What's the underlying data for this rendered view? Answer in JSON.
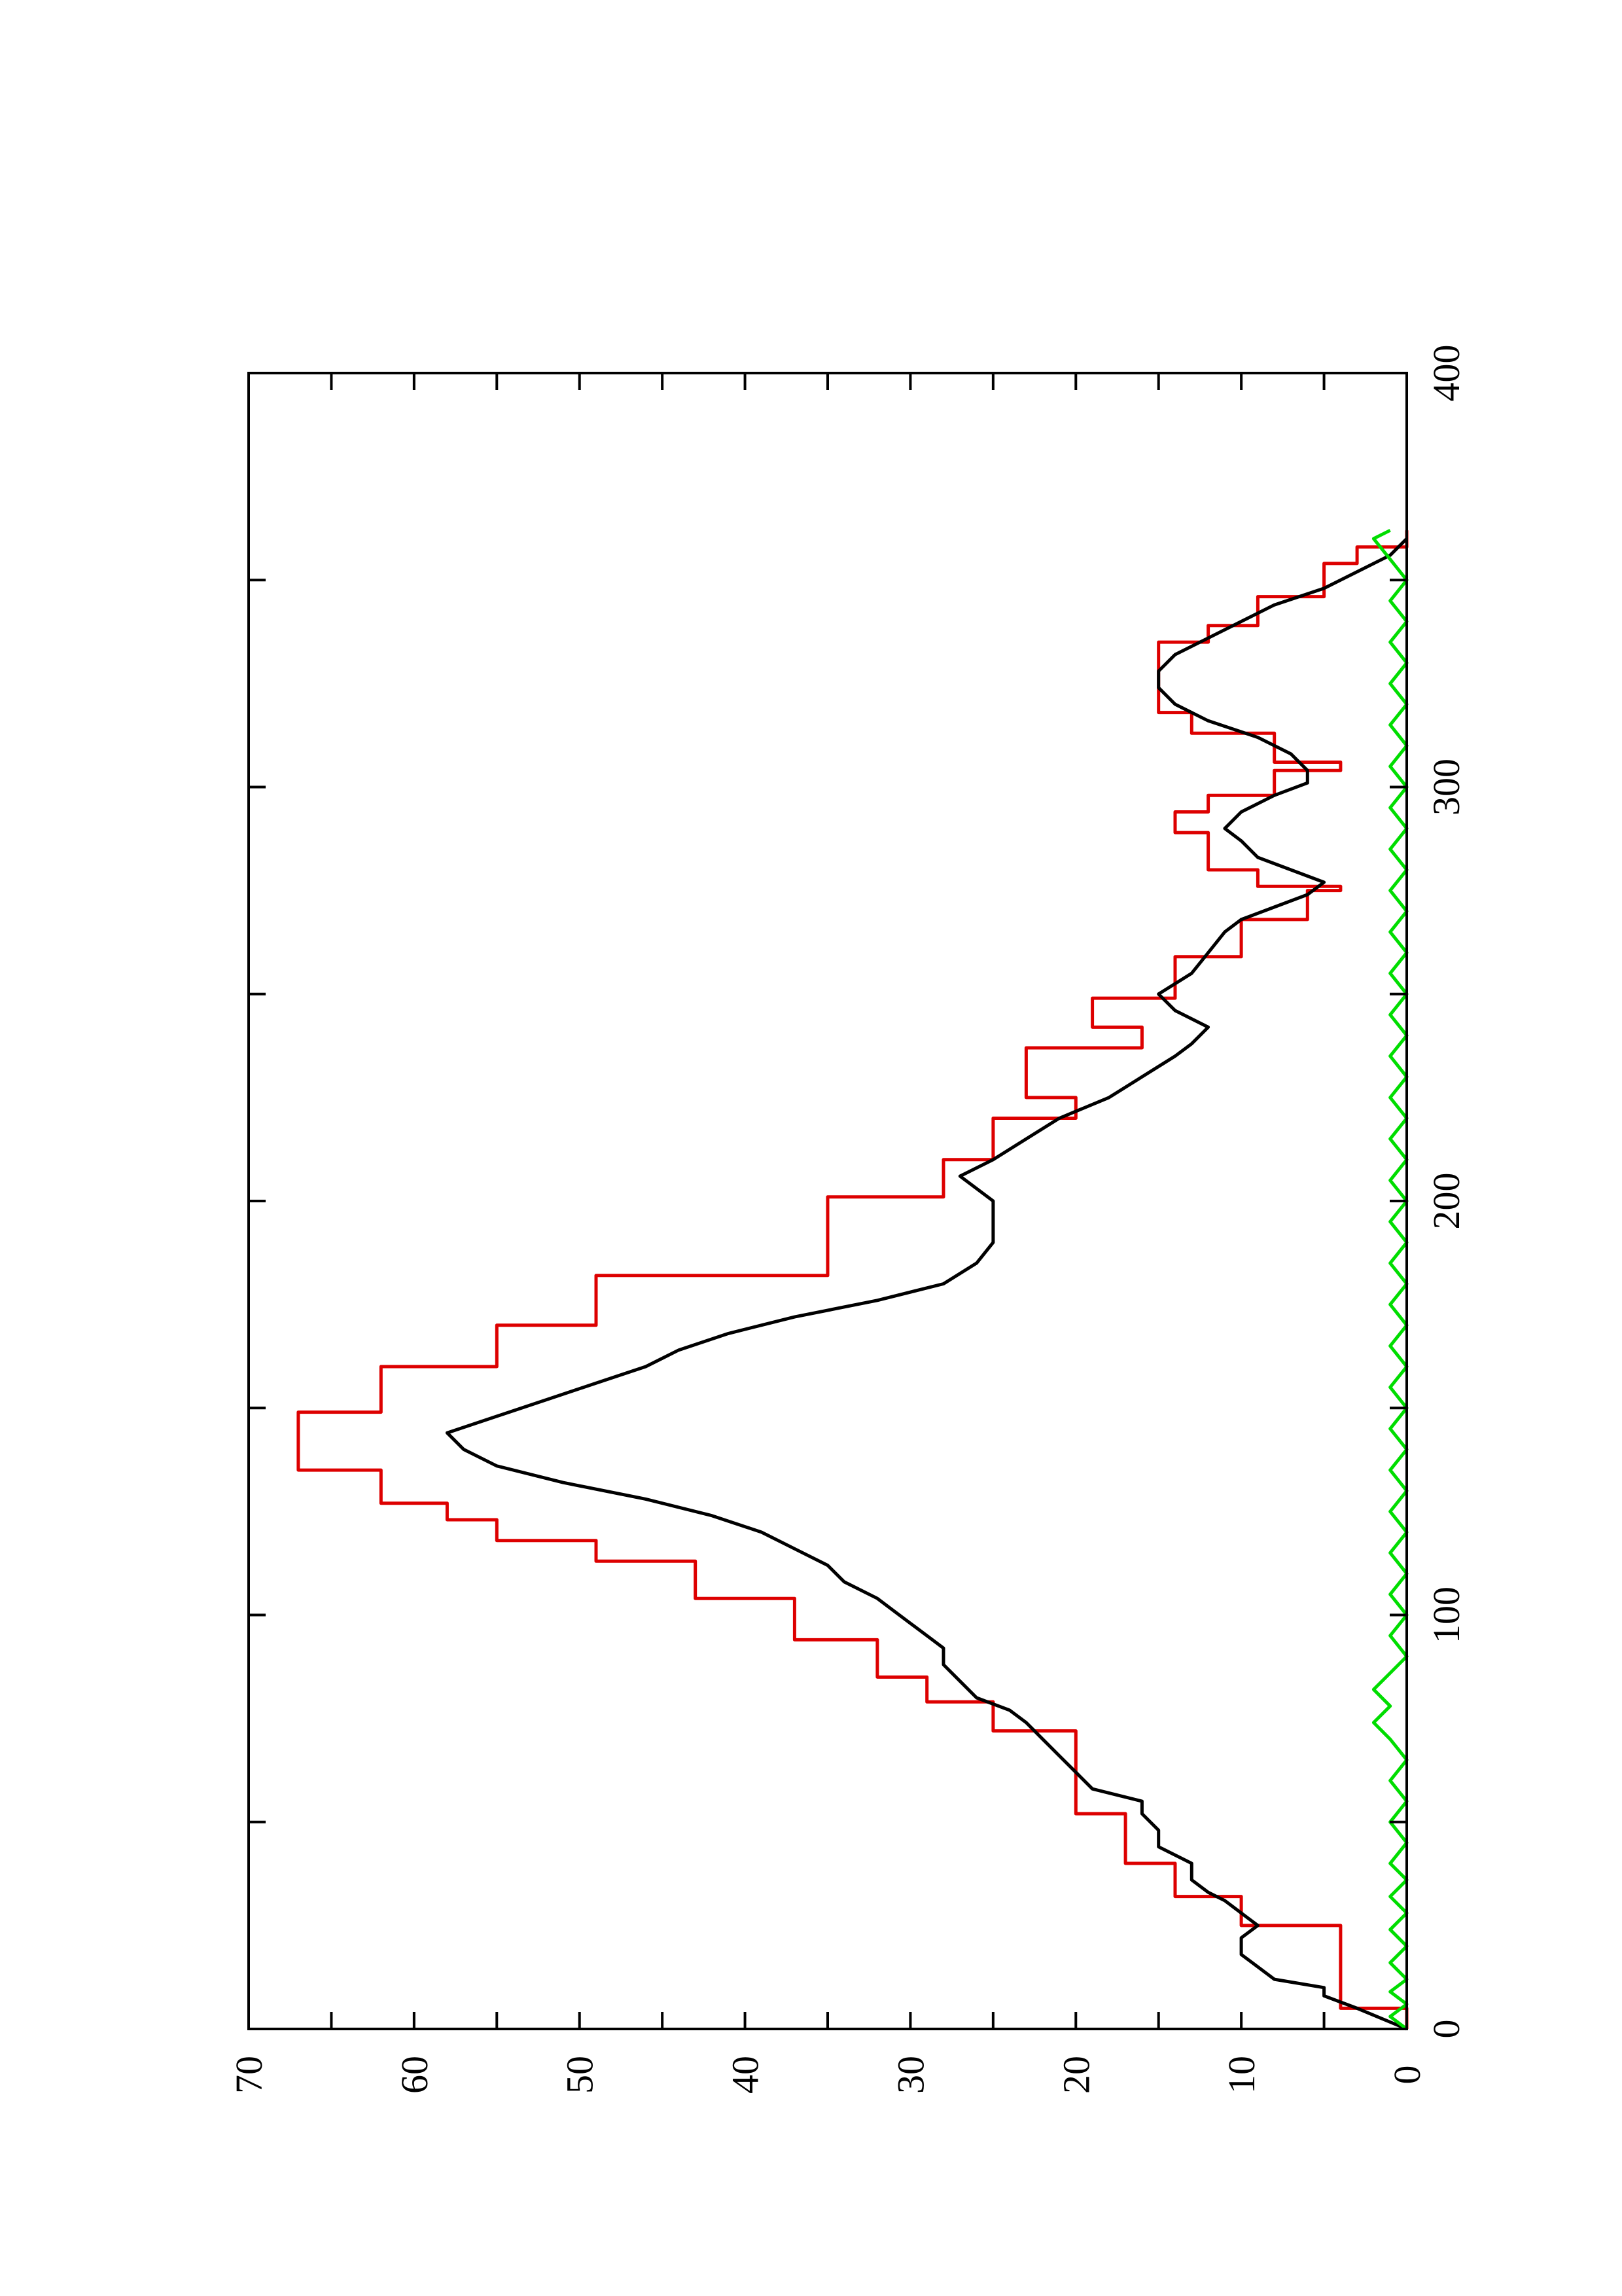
{
  "chart_data": {
    "type": "line",
    "orientation": "rotated-90-ccw",
    "title": "",
    "xlabel": "",
    "ylabel": "",
    "xlim": [
      0,
      400
    ],
    "ylim": [
      0,
      70
    ],
    "x_ticks": [
      0,
      100,
      200,
      300,
      400
    ],
    "y_ticks": [
      0,
      10,
      20,
      30,
      40,
      50,
      60,
      70
    ],
    "grid": false,
    "legend": "none",
    "series": [
      {
        "color": "#dd0000",
        "step": true,
        "points": [
          [
            0,
            0
          ],
          [
            5,
            0
          ],
          [
            5,
            4
          ],
          [
            25,
            4
          ],
          [
            25,
            10
          ],
          [
            32,
            10
          ],
          [
            32,
            14
          ],
          [
            40,
            14
          ],
          [
            40,
            17
          ],
          [
            52,
            17
          ],
          [
            52,
            20
          ],
          [
            72,
            20
          ],
          [
            72,
            25
          ],
          [
            79,
            25
          ],
          [
            79,
            29
          ],
          [
            85,
            29
          ],
          [
            85,
            32
          ],
          [
            94,
            32
          ],
          [
            94,
            37
          ],
          [
            104,
            37
          ],
          [
            104,
            43
          ],
          [
            113,
            43
          ],
          [
            113,
            49
          ],
          [
            118,
            49
          ],
          [
            118,
            55
          ],
          [
            123,
            55
          ],
          [
            123,
            58
          ],
          [
            127,
            58
          ],
          [
            127,
            62
          ],
          [
            135,
            62
          ],
          [
            135,
            67
          ],
          [
            149,
            67
          ],
          [
            149,
            62
          ],
          [
            160,
            62
          ],
          [
            160,
            55
          ],
          [
            170,
            55
          ],
          [
            170,
            49
          ],
          [
            182,
            49
          ],
          [
            182,
            35
          ],
          [
            201,
            35
          ],
          [
            201,
            28
          ],
          [
            210,
            28
          ],
          [
            210,
            25
          ],
          [
            220,
            25
          ],
          [
            220,
            20
          ],
          [
            225,
            20
          ],
          [
            225,
            23
          ],
          [
            237,
            23
          ],
          [
            237,
            16
          ],
          [
            242,
            16
          ],
          [
            242,
            19
          ],
          [
            249,
            19
          ],
          [
            249,
            14
          ],
          [
            259,
            14
          ],
          [
            259,
            10
          ],
          [
            268,
            10
          ],
          [
            268,
            6
          ],
          [
            275,
            6
          ],
          [
            275,
            4
          ],
          [
            276,
            4
          ],
          [
            276,
            9
          ],
          [
            280,
            9
          ],
          [
            280,
            12
          ],
          [
            289,
            12
          ],
          [
            289,
            14
          ],
          [
            294,
            14
          ],
          [
            294,
            12
          ],
          [
            298,
            12
          ],
          [
            298,
            8
          ],
          [
            304,
            8
          ],
          [
            304,
            4
          ],
          [
            306,
            4
          ],
          [
            306,
            8
          ],
          [
            313,
            8
          ],
          [
            313,
            13
          ],
          [
            318,
            13
          ],
          [
            318,
            15
          ],
          [
            335,
            15
          ],
          [
            335,
            12
          ],
          [
            339,
            12
          ],
          [
            339,
            9
          ],
          [
            346,
            9
          ],
          [
            346,
            5
          ],
          [
            354,
            5
          ],
          [
            354,
            3
          ],
          [
            358,
            3
          ],
          [
            358,
            0
          ],
          [
            362,
            0
          ]
        ]
      },
      {
        "color": "#000000",
        "step": false,
        "points": [
          [
            0,
            0
          ],
          [
            5,
            3
          ],
          [
            8,
            5
          ],
          [
            10,
            5
          ],
          [
            12,
            8
          ],
          [
            15,
            9
          ],
          [
            18,
            10
          ],
          [
            22,
            10
          ],
          [
            25,
            9
          ],
          [
            28,
            10
          ],
          [
            31,
            11
          ],
          [
            33,
            12
          ],
          [
            36,
            13
          ],
          [
            40,
            13
          ],
          [
            44,
            15
          ],
          [
            48,
            15
          ],
          [
            52,
            16
          ],
          [
            55,
            16
          ],
          [
            58,
            19
          ],
          [
            62,
            20
          ],
          [
            66,
            21
          ],
          [
            70,
            22
          ],
          [
            74,
            23
          ],
          [
            77,
            24
          ],
          [
            80,
            26
          ],
          [
            84,
            27
          ],
          [
            88,
            28
          ],
          [
            92,
            28
          ],
          [
            95,
            29
          ],
          [
            98,
            30
          ],
          [
            101,
            31
          ],
          [
            104,
            32
          ],
          [
            108,
            34
          ],
          [
            112,
            35
          ],
          [
            116,
            37
          ],
          [
            120,
            39
          ],
          [
            124,
            42
          ],
          [
            128,
            46
          ],
          [
            132,
            51
          ],
          [
            136,
            55
          ],
          [
            140,
            57
          ],
          [
            144,
            58
          ],
          [
            148,
            55
          ],
          [
            152,
            52
          ],
          [
            156,
            49
          ],
          [
            160,
            46
          ],
          [
            164,
            44
          ],
          [
            168,
            41
          ],
          [
            172,
            37
          ],
          [
            176,
            32
          ],
          [
            180,
            28
          ],
          [
            185,
            26
          ],
          [
            190,
            25
          ],
          [
            195,
            25
          ],
          [
            200,
            25
          ],
          [
            203,
            26
          ],
          [
            206,
            27
          ],
          [
            210,
            25
          ],
          [
            215,
            23
          ],
          [
            220,
            21
          ],
          [
            225,
            18
          ],
          [
            230,
            16
          ],
          [
            235,
            14
          ],
          [
            238,
            13
          ],
          [
            242,
            12
          ],
          [
            246,
            14
          ],
          [
            250,
            15
          ],
          [
            255,
            13
          ],
          [
            260,
            12
          ],
          [
            265,
            11
          ],
          [
            268,
            10
          ],
          [
            271,
            8
          ],
          [
            274,
            6
          ],
          [
            277,
            5
          ],
          [
            280,
            7
          ],
          [
            283,
            9
          ],
          [
            287,
            10
          ],
          [
            290,
            11
          ],
          [
            294,
            10
          ],
          [
            298,
            8
          ],
          [
            301,
            6
          ],
          [
            304,
            6
          ],
          [
            308,
            7
          ],
          [
            312,
            9
          ],
          [
            316,
            12
          ],
          [
            320,
            14
          ],
          [
            324,
            15
          ],
          [
            328,
            15
          ],
          [
            332,
            14
          ],
          [
            336,
            12
          ],
          [
            340,
            10
          ],
          [
            344,
            8
          ],
          [
            348,
            5
          ],
          [
            352,
            3
          ],
          [
            356,
            1
          ],
          [
            360,
            0
          ]
        ]
      },
      {
        "color": "#00dd00",
        "step": false,
        "points": [
          [
            0,
            0
          ],
          [
            3,
            1
          ],
          [
            6,
            0
          ],
          [
            9,
            1
          ],
          [
            12,
            0
          ],
          [
            16,
            1
          ],
          [
            20,
            0
          ],
          [
            24,
            1
          ],
          [
            28,
            0
          ],
          [
            32,
            1
          ],
          [
            36,
            0
          ],
          [
            40,
            1
          ],
          [
            45,
            0
          ],
          [
            50,
            1
          ],
          [
            55,
            0
          ],
          [
            60,
            1
          ],
          [
            65,
            0
          ],
          [
            70,
            1
          ],
          [
            74,
            2
          ],
          [
            78,
            1
          ],
          [
            82,
            2
          ],
          [
            86,
            1
          ],
          [
            90,
            0
          ],
          [
            95,
            1
          ],
          [
            100,
            0
          ],
          [
            105,
            1
          ],
          [
            110,
            0
          ],
          [
            115,
            1
          ],
          [
            120,
            0
          ],
          [
            125,
            1
          ],
          [
            130,
            0
          ],
          [
            135,
            1
          ],
          [
            140,
            0
          ],
          [
            145,
            1
          ],
          [
            150,
            0
          ],
          [
            155,
            1
          ],
          [
            160,
            0
          ],
          [
            165,
            1
          ],
          [
            170,
            0
          ],
          [
            175,
            1
          ],
          [
            180,
            0
          ],
          [
            185,
            1
          ],
          [
            190,
            0
          ],
          [
            195,
            1
          ],
          [
            200,
            0
          ],
          [
            205,
            1
          ],
          [
            210,
            0
          ],
          [
            215,
            1
          ],
          [
            220,
            0
          ],
          [
            225,
            1
          ],
          [
            230,
            0
          ],
          [
            235,
            1
          ],
          [
            240,
            0
          ],
          [
            245,
            1
          ],
          [
            250,
            0
          ],
          [
            255,
            1
          ],
          [
            260,
            0
          ],
          [
            265,
            1
          ],
          [
            270,
            0
          ],
          [
            275,
            1
          ],
          [
            280,
            0
          ],
          [
            285,
            1
          ],
          [
            290,
            0
          ],
          [
            295,
            1
          ],
          [
            300,
            0
          ],
          [
            305,
            1
          ],
          [
            310,
            0
          ],
          [
            315,
            1
          ],
          [
            320,
            0
          ],
          [
            325,
            1
          ],
          [
            330,
            0
          ],
          [
            335,
            1
          ],
          [
            340,
            0
          ],
          [
            345,
            1
          ],
          [
            350,
            0
          ],
          [
            355,
            1
          ],
          [
            360,
            2
          ],
          [
            362,
            1
          ]
        ]
      }
    ]
  }
}
